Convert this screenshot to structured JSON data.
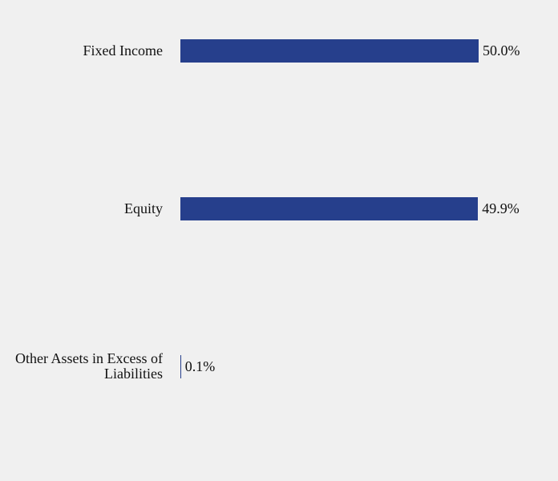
{
  "chart_data": {
    "type": "bar",
    "orientation": "horizontal",
    "categories": [
      "Fixed Income",
      "Equity",
      "Other Assets in Excess of Liabilities"
    ],
    "values": [
      50.0,
      49.9,
      0.1
    ],
    "value_labels": [
      "50.0%",
      "49.9%",
      "0.1%"
    ],
    "color": "#263f8c"
  }
}
